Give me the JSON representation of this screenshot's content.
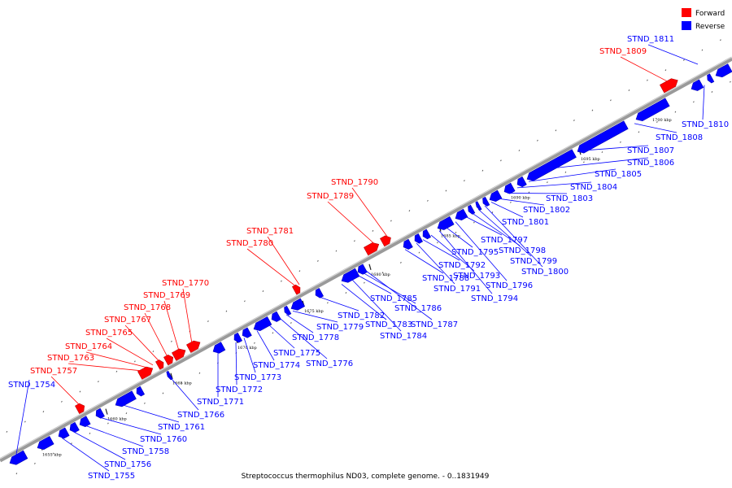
{
  "caption": "Streptococcus thermophilus ND03, complete genome. - 0..1831949",
  "legend": {
    "forward": {
      "label": "Forward",
      "color": "#ff0000"
    },
    "reverse": {
      "label": "Reverse",
      "color": "#0000ff"
    }
  },
  "axis": {
    "ticks": [
      "1655 kbp",
      "1660 kbp",
      "1665 kbp",
      "1670 kbp",
      "1675 kbp",
      "1680 kbp",
      "1685 kbp",
      "1690 kbp",
      "1695 kbp",
      "1700 kbp"
    ]
  },
  "forward_genes": [
    "STND_1757",
    "STND_1763",
    "STND_1764",
    "STND_1765",
    "STND_1767",
    "STND_1768",
    "STND_1769",
    "STND_1770",
    "STND_1780",
    "STND_1781",
    "STND_1789",
    "STND_1790",
    "STND_1809"
  ],
  "reverse_genes": [
    "STND_1754",
    "STND_1755",
    "STND_1756",
    "STND_1758",
    "STND_1760",
    "STND_1761",
    "STND_1766",
    "STND_1771",
    "STND_1772",
    "STND_1773",
    "STND_1774",
    "STND_1775",
    "STND_1776",
    "STND_1778",
    "STND_1779",
    "STND_1782",
    "STND_1783",
    "STND_1784",
    "STND_1785",
    "STND_1786",
    "STND_1787",
    "STND_1788",
    "STND_1791",
    "STND_1792",
    "STND_1793",
    "STND_1794",
    "STND_1795",
    "STND_1796",
    "STND_1797",
    "STND_1798",
    "STND_1799",
    "STND_1800",
    "STND_1801",
    "STND_1802",
    "STND_1803",
    "STND_1804",
    "STND_1805",
    "STND_1806",
    "STND_1807",
    "STND_1808",
    "STND_1810",
    "STND_1811"
  ]
}
